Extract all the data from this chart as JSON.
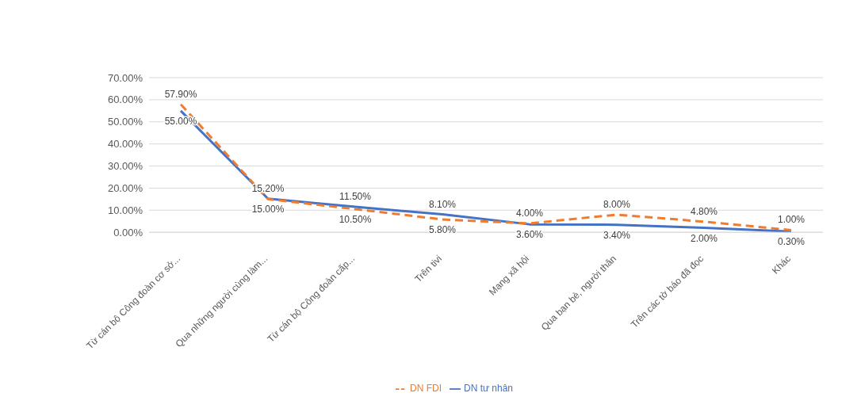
{
  "chart_data": {
    "type": "line",
    "categories": [
      "Từ cán bộ Công đoàn cơ sở...",
      "Qua những người cùng làm...",
      "Từ cán bộ Công đoàn cấp...",
      "Trên tivi",
      "Mạng xã hội",
      "Qua bạn bè, người thân",
      "Trên các tờ báo đã đọc",
      "Khác"
    ],
    "series": [
      {
        "name": "DN tư nhân",
        "color": "#4472c4",
        "line_style": "solid",
        "values": [
          55.0,
          15.2,
          11.5,
          8.1,
          3.6,
          3.4,
          2.0,
          0.3
        ],
        "value_labels": [
          "55.00%",
          "15.20%",
          "11.50%",
          "8.10%",
          "3.60%",
          "3.40%",
          "2.00%",
          "0.30%"
        ]
      },
      {
        "name": "DN FDI",
        "color": "#ed7d31",
        "line_style": "dashed",
        "values": [
          57.9,
          15.0,
          10.5,
          5.8,
          4.0,
          8.0,
          4.8,
          1.0
        ],
        "value_labels": [
          "57.90%",
          "15.00%",
          "10.50%",
          "5.80%",
          "4.00%",
          "8.00%",
          "4.80%",
          "1.00%"
        ]
      }
    ],
    "ylim": [
      0,
      70
    ],
    "yticks": [
      {
        "value": 0,
        "label": "0.00%"
      },
      {
        "value": 10,
        "label": "10.00%"
      },
      {
        "value": 20,
        "label": "20.00%"
      },
      {
        "value": 30,
        "label": "30.00%"
      },
      {
        "value": 40,
        "label": "40.00%"
      },
      {
        "value": 50,
        "label": "50.00%"
      },
      {
        "value": 60,
        "label": "60.00%"
      },
      {
        "value": 70,
        "label": "70.00%"
      }
    ],
    "grid": "y",
    "legend": "bottom",
    "marker": "none"
  }
}
